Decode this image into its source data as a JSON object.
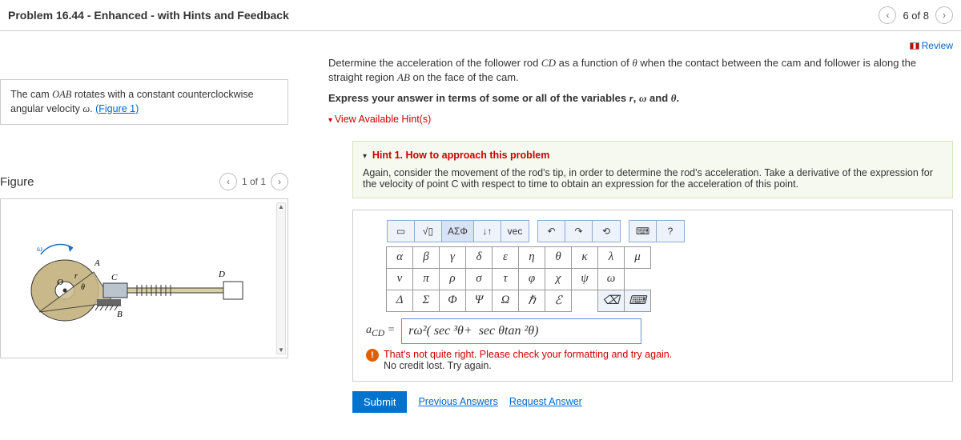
{
  "header": {
    "title": "Problem 16.44 - Enhanced - with Hints and Feedback",
    "position": "6 of 8"
  },
  "left": {
    "desc_pre": "The cam ",
    "desc_italic1": "OAB",
    "desc_mid": " rotates with a constant counterclockwise angular velocity ",
    "desc_italic2": "ω",
    "desc_post": ". ",
    "fig_link": "(Figure 1)"
  },
  "figure": {
    "label": "Figure",
    "pager": "1 of 1",
    "labels": {
      "A": "A",
      "B": "B",
      "C": "C",
      "D": "D",
      "O": "O",
      "r": "r",
      "theta": "θ",
      "omega": "ω"
    }
  },
  "review": {
    "label": "Review"
  },
  "prompt": {
    "line1_a": "Determine the acceleration of the follower rod ",
    "line1_i1": "CD",
    "line1_b": " as a function of ",
    "line1_i2": "θ",
    "line1_c": " when the contact between the cam and follower is along the straight region ",
    "line1_i3": "AB",
    "line1_d": " on the face of the cam.",
    "line2_a": "Express your answer in terms of some or all of the variables ",
    "line2_v1": "r",
    "line2_s1": ", ",
    "line2_v2": "ω",
    "line2_s2": " and ",
    "line2_v3": "θ",
    "line2_end": "."
  },
  "hints": {
    "toggle": "View Available Hint(s)",
    "h1_title": "Hint 1.",
    "h1_sub": " How to approach this problem",
    "h1_body": "Again, consider the movement of the rod's tip, in order to determine the rod's acceleration. Take a derivative of the expression for the velocity of point C with respect to time to obtain an expression for the acceleration of this point."
  },
  "palette": {
    "top": [
      "▭",
      "√▯",
      "ΑΣΦ",
      "↓↑",
      "vec",
      "↶",
      "↷",
      "⟲",
      "⌨",
      "?"
    ],
    "row1": [
      "α",
      "β",
      "γ",
      "δ",
      "ε",
      "η",
      "θ",
      "κ",
      "λ",
      "μ"
    ],
    "row2": [
      "ν",
      "π",
      "ρ",
      "σ",
      "τ",
      "φ",
      "χ",
      "ψ",
      "ω",
      ""
    ],
    "row3": [
      "Δ",
      "Σ",
      "Φ",
      "Ψ",
      "Ω",
      "ℏ",
      "ℰ",
      "",
      "⌫",
      "⌨"
    ]
  },
  "answer": {
    "lhs": "a_CD =",
    "value": "rω²( sec ³θ +  sec θ tan ²θ)"
  },
  "feedback": {
    "l1": "That's not quite right. Please check your formatting and try again.",
    "l2": "No credit lost. Try again."
  },
  "actions": {
    "submit": "Submit",
    "prev": "Previous Answers",
    "req": "Request Answer"
  },
  "colors": {
    "link": "#0066cc",
    "warn": "#c00",
    "submit": "#0073cf",
    "toolbg": "#eef3fb",
    "border": "#ccc"
  }
}
